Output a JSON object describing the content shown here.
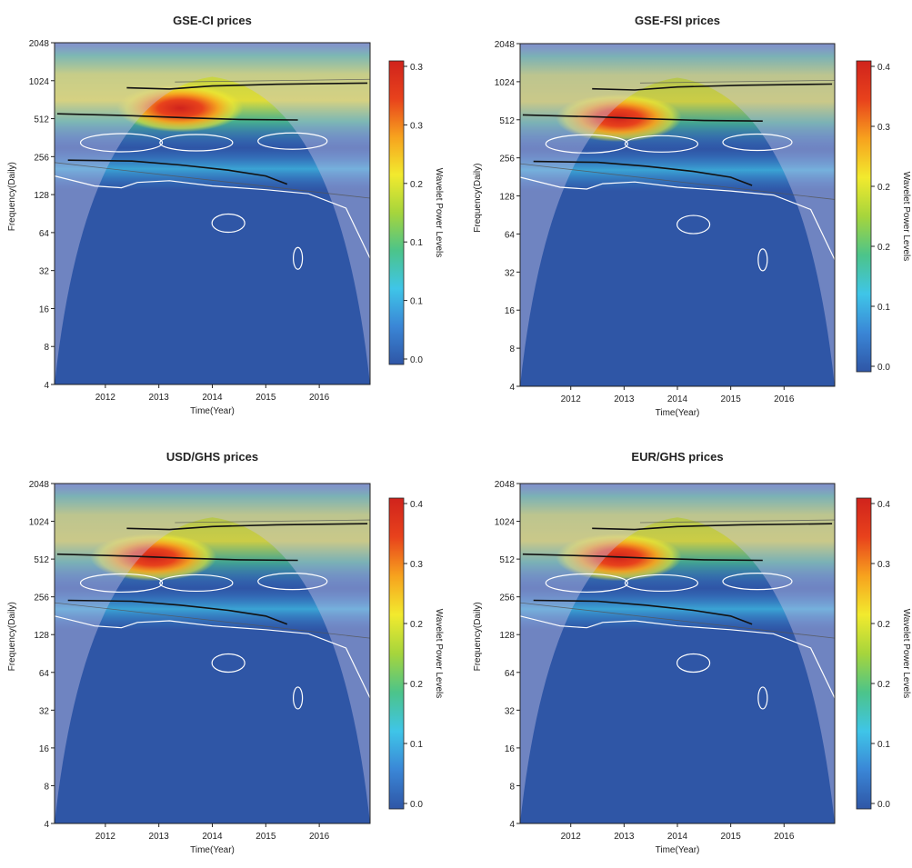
{
  "chart_data": [
    {
      "type": "heatmap",
      "title": "GSE-CI prices",
      "xlabel": "Time(Year)",
      "ylabel": "Frequency(Daily)",
      "colorbar_label": "Wavelet Power Levels",
      "x_ticks": [
        "2012",
        "2013",
        "2014",
        "2015",
        "2016"
      ],
      "y_ticks": [
        "2048",
        "1024",
        "512",
        "256",
        "128",
        "64",
        "32",
        "16",
        "8",
        "4"
      ],
      "colorbar_ticks": [
        "0.3",
        "0.3",
        "0.2",
        "0.1",
        "0.1",
        "0.0"
      ],
      "hot_spot": {
        "x": 2013.4,
        "y": 620,
        "intensity": 1.0
      },
      "band_strength": 0.9
    },
    {
      "type": "heatmap",
      "title": "GSE-FSI prices",
      "xlabel": "Time(Year)",
      "ylabel": "Frequency(Daily)",
      "colorbar_label": "Wavelet Power Levels",
      "x_ticks": [
        "2012",
        "2013",
        "2014",
        "2015",
        "2016"
      ],
      "y_ticks": [
        "2048",
        "1024",
        "512",
        "256",
        "128",
        "64",
        "32",
        "16",
        "8",
        "4"
      ],
      "colorbar_ticks": [
        "0.4",
        "0.3",
        "0.2",
        "0.2",
        "0.1",
        "0.0"
      ],
      "hot_spot": {
        "x": 2012.9,
        "y": 530,
        "intensity": 1.0
      },
      "band_strength": 0.8
    },
    {
      "type": "heatmap",
      "title": "USD/GHS prices",
      "xlabel": "Time(Year)",
      "ylabel": "Frequency(Daily)",
      "colorbar_label": "Wavelet Power Levels",
      "x_ticks": [
        "2012",
        "2013",
        "2014",
        "2015",
        "2016"
      ],
      "y_ticks": [
        "2048",
        "1024",
        "512",
        "256",
        "128",
        "64",
        "32",
        "16",
        "8",
        "4"
      ],
      "colorbar_ticks": [
        "0.4",
        "0.3",
        "0.2",
        "0.2",
        "0.1",
        "0.0"
      ],
      "hot_spot": {
        "x": 2012.9,
        "y": 530,
        "intensity": 1.0
      },
      "band_strength": 0.8
    },
    {
      "type": "heatmap",
      "title": "EUR/GHS prices",
      "xlabel": "Time(Year)",
      "ylabel": "Frequency(Daily)",
      "colorbar_label": "Wavelet Power Levels",
      "x_ticks": [
        "2012",
        "2013",
        "2014",
        "2015",
        "2016"
      ],
      "y_ticks": [
        "2048",
        "1024",
        "512",
        "256",
        "128",
        "64",
        "32",
        "16",
        "8",
        "4"
      ],
      "colorbar_ticks": [
        "0.4",
        "0.3",
        "0.2",
        "0.2",
        "0.1",
        "0.0"
      ],
      "hot_spot": {
        "x": 2012.9,
        "y": 530,
        "intensity": 1.0
      },
      "band_strength": 0.8
    }
  ],
  "colors": {
    "background": "#2f56a6",
    "colormap": [
      "#2f56a6",
      "#3a86d6",
      "#3fc5e8",
      "#4cc48a",
      "#a6d53c",
      "#f2ea2e",
      "#f7a21e",
      "#e8421c",
      "#d0231c"
    ],
    "contour": "#ffffff",
    "ridge": "#111111",
    "cone_shade": "#c9c3e6"
  }
}
